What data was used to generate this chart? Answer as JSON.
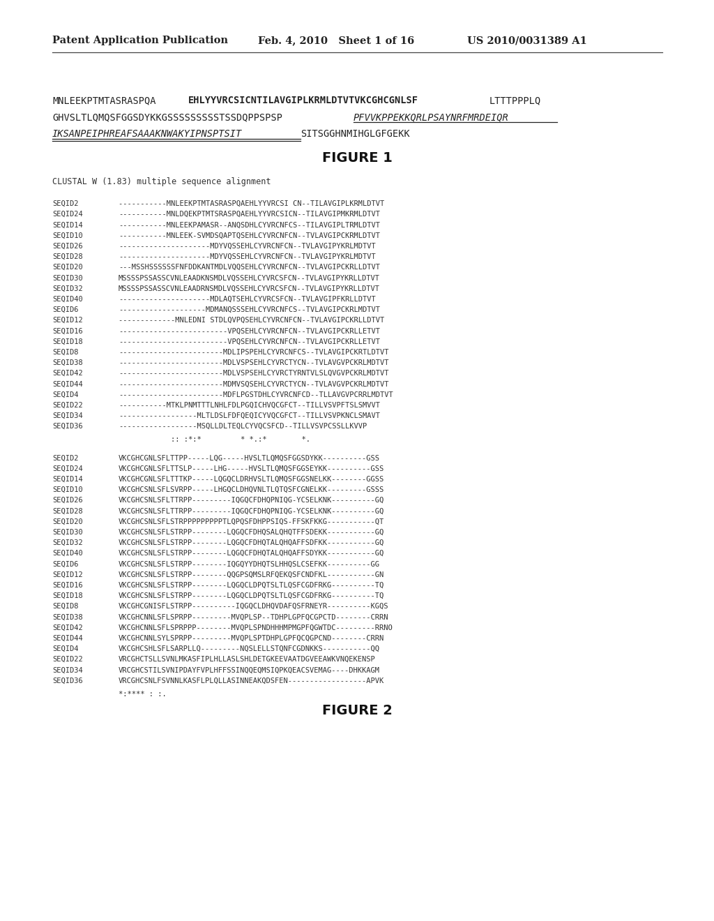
{
  "header_left": "Patent Application Publication",
  "header_mid": "Feb. 4, 2010   Sheet 1 of 16",
  "header_right": "US 2010/0031389 A1",
  "figure1_label": "FIGURE 1",
  "clustal_header": "CLUSTAL W (1.83) multiple sequence alignment",
  "block1_rows": [
    [
      "SEQID2",
      "-----------MNLEEKPTMTASRASPQAEHLYYVRCSI CN--TILAVGIPLKRMLDTVT"
    ],
    [
      "SEQID24",
      "-----------MNLDQEKPTMTSRASPQAEHLYYVRCSICN--TILAVGIPMKRMLDTVT"
    ],
    [
      "SEQID14",
      "-----------MNLEEKPAMASR--ANQSDHLCYVRCNFCS--TILAVGIPLTRMLDTVT"
    ],
    [
      "SEQID10",
      "-----------MNLEEK-SVMDSQAPTQSEHLCYVRCNFCN--TVLAVGIPCKRMLDTVT"
    ],
    [
      "SEQID26",
      "---------------------MDYVQSSEHLCYVRCNFCN--TVLAVGIPYKRLMDTVT"
    ],
    [
      "SEQID28",
      "---------------------MDYVQSSEHLCYVRCNFCN--TVLAVGIPYKRLMDTVT"
    ],
    [
      "SEQID20",
      "---MSSHSSSSSSFNFDDKANTMDLVQQSEHLCYVRCNFCN--TVLAVGIPCKRLLDTVT"
    ],
    [
      "SEQID30",
      "MSSSSPSSASSCVNLEAADKNSMDLVQSSEHLCYVRCSFCN--TVLAVGIPYKRLLDTVT"
    ],
    [
      "SEQID32",
      "MSSSSPSSASSCVNLEAADRNSMDLVQSSEHLCYVRCSFCN--TVLAVGIPYKRLLDTVT"
    ],
    [
      "SEQID40",
      "---------------------MDLAQTSEHLCYVRCSFCN--TVLAVGIPFKRLLDTVT"
    ],
    [
      "SEQID6",
      "--------------------MDMANQSSSEHLCYVRCNFCS--TVLAVGIPCKRLMDTVT"
    ],
    [
      "SEQID12",
      "-------------MNLEDNI STDLQVPQSEHLCYVRCNFCN--TVLAVGIPCKRLLDTVT"
    ],
    [
      "SEQID16",
      "-------------------------VPQSEHLCYVRCNFCN--TVLAVGIPCKRLLETVT"
    ],
    [
      "SEQID18",
      "-------------------------VPQSEHLCYVRCNFCN--TVLAVGIPCKRLLETVT"
    ],
    [
      "SEQID8",
      "------------------------MDLIPSPEHLCYVRCNFCS--TVLAVGIPCKRTLDTVT"
    ],
    [
      "SEQID38",
      "------------------------MDLVSPSEHLCYVRCTYCN--TVLAVGVPCKRLMDTVT"
    ],
    [
      "SEQID42",
      "------------------------MDLVSPSEHLCYVRCTYRNTVLSLQVGVPCKRLMDTVT"
    ],
    [
      "SEQID44",
      "------------------------MDMVSQSEHLCYVRCTYCN--TVLAVGVPCKRLMDTVT"
    ],
    [
      "SEQID4",
      "------------------------MDFLPGSTDHLCYVRCNFCD--TLLAVGVPCRRLMDTVT"
    ],
    [
      "SEQID22",
      "-----------MTKLPNMTTTLNHLFDLPGQICHVQCGFCT--TILLVSVPFTSLSMVVT"
    ],
    [
      "SEQID34",
      "------------------MLTLDSLFDFQEQICYVQCGFCT--TILLVSVPKNCLSMAVT"
    ],
    [
      "SEQID36",
      "------------------MSQLLDLTEQLCYVQCSFCD--TILLVSVPCSSLLKVVP"
    ]
  ],
  "block1_consensus": "            :: :*:*         * *.:*        *.",
  "block2_rows": [
    [
      "SEQID2",
      "VKCGHCGNLSFLTTPP-----LQG-----HVSLTLQMQSFGGSDYKK----------GSS"
    ],
    [
      "SEQID24",
      "VKCGHCGNLSFLTTSLP-----LHG-----HVSLTLQMQSFGGSEYKK----------GSS"
    ],
    [
      "SEQID14",
      "VKCGHCGNLSFLTTTKP-----LQGQCLDRHVSLTLQMQSFGGSNELKK--------GGSS"
    ],
    [
      "SEQID10",
      "VKCGHCSNLSFLSVRPP-----LHGQCLDHQVNLTLQTQSFCGNELKK---------GSSS"
    ],
    [
      "SEQID26",
      "VKCGHCSNLSFLTTRPP---------IQGQCFDHQPNIQG-YCSELKNK----------GQ"
    ],
    [
      "SEQID28",
      "VKCGHCSNLSFLTTRPP---------IQGQCFDHQPNIQG-YCSELKNK----------GQ"
    ],
    [
      "SEQID20",
      "VKCGHCSNLSFLSTRPPPPPPPPPTLQPQSFDHPPSIQS-FFSKFKKG-----------QT"
    ],
    [
      "SEQID30",
      "VKCGHCSNLSFLSTRPP--------LQGQCFDHQSALQHQTFFSDEKK-----------GQ"
    ],
    [
      "SEQID32",
      "VKCGHCSNLSFLSTRPP--------LQGQCFDHQTALQHQAFFSDFKK-----------GQ"
    ],
    [
      "SEQID40",
      "VKCGHCSNLSFLSTRPP--------LQGQCFDHQTALQHQAFFSDYKK-----------GQ"
    ],
    [
      "SEQID6",
      "VKCGHCSNLSFLSTRPP--------IQGQYYDHQTSLHHQSLCSEFKK----------GG"
    ],
    [
      "SEQID12",
      "VKCGHCSNLSFLSTRPP--------QQGPSQMSLRFQEKQSFCNDFKL-----------GN"
    ],
    [
      "SEQID16",
      "VKCGHCSNLSFLSTRPP--------LQGQCLDPQTSLTLQSFCGDFRKG----------TQ"
    ],
    [
      "SEQID18",
      "VKCGHCSNLSFLSTRPP--------LQGQCLDPQTSLTLQSFCGDFRKG----------TQ"
    ],
    [
      "SEQID8",
      "VKCGHCGNISFLSTRPP----------IQGQCLDHQVDAFQSFRNEYR----------KGQS"
    ],
    [
      "SEQID38",
      "VKCGHCNNLSFLSPRPP---------MVQPLSP--TDHPLGPFQCGPCTD--------CRRN"
    ],
    [
      "SEQID42",
      "VKCGHCNNLSFLSPRPPP--------MVQPLSPNDHHHMPMGPFQGWTDC---------RRNO"
    ],
    [
      "SEQID44",
      "VKCGHCNNLSYLSPRPP---------MVQPLSPTDHPLGPFQCQGPCND--------CRRN"
    ],
    [
      "SEQID4",
      "VKCGHCSHLSFLSARPLLQ---------NQSLELLSTQNFCGDNKKS-----------QQ"
    ],
    [
      "SEQID22",
      "VRCGHCTSLLSVNLMKASFIPLHLLASLSHLDETGKEEVAATDGVEEAWKVNQEKENSP"
    ],
    [
      "SEQID34",
      "VRCGHCSTILSVNIPDAYFVPLHFFSSINQQEQMSIQPKQEACSVEMAG----DHKKAGM"
    ],
    [
      "SEQID36",
      "VRCGHCSNLFSVNNLKASFLPLQLLASINNEAKQDSFEN------------------APVK"
    ]
  ],
  "block2_consensus": "*:**** : :.",
  "figure2_label": "FIGURE 2"
}
